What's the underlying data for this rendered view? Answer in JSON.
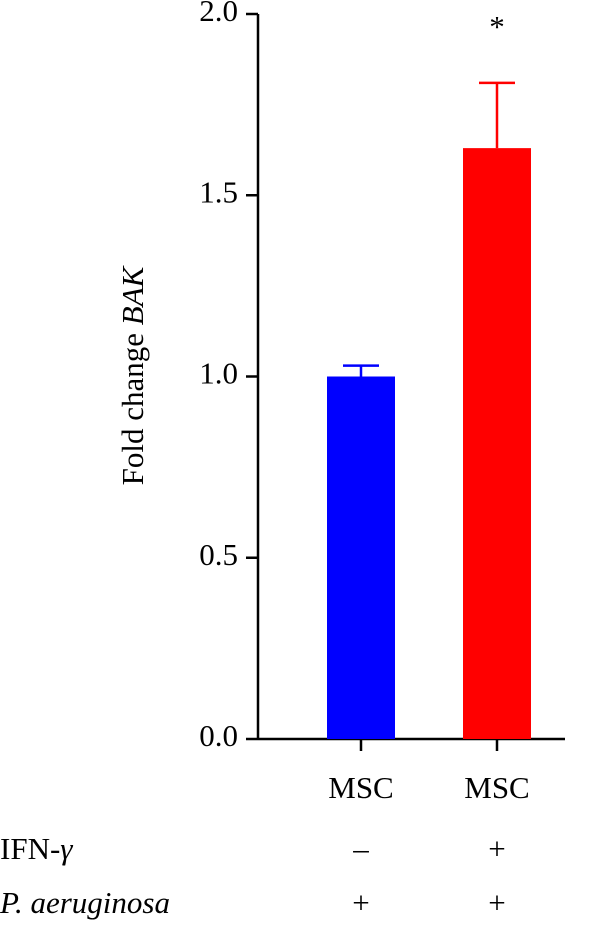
{
  "chart_data": {
    "type": "bar",
    "ylabel": "Fold change ",
    "ylabel_italic": "BAK",
    "categories": [
      "MSC",
      "MSC"
    ],
    "values": [
      1.0,
      1.63
    ],
    "errors": [
      0.03,
      0.18
    ],
    "colors": [
      "#0000ff",
      "#ff0000"
    ],
    "ylim": [
      0,
      2
    ],
    "yticks": [
      {
        "value": 0,
        "label": "0.0"
      },
      0.5,
      {
        "value": 1,
        "label": "1.0"
      },
      1.5,
      {
        "value": 2,
        "label": "2.0"
      }
    ],
    "annotations": [
      null,
      "*"
    ],
    "conditions": [
      {
        "label": "IFN-",
        "label_italic": "γ",
        "values": [
          "–",
          "+"
        ]
      },
      {
        "label_italic": "P. aeruginosa",
        "values": [
          "+",
          "+"
        ]
      }
    ]
  }
}
